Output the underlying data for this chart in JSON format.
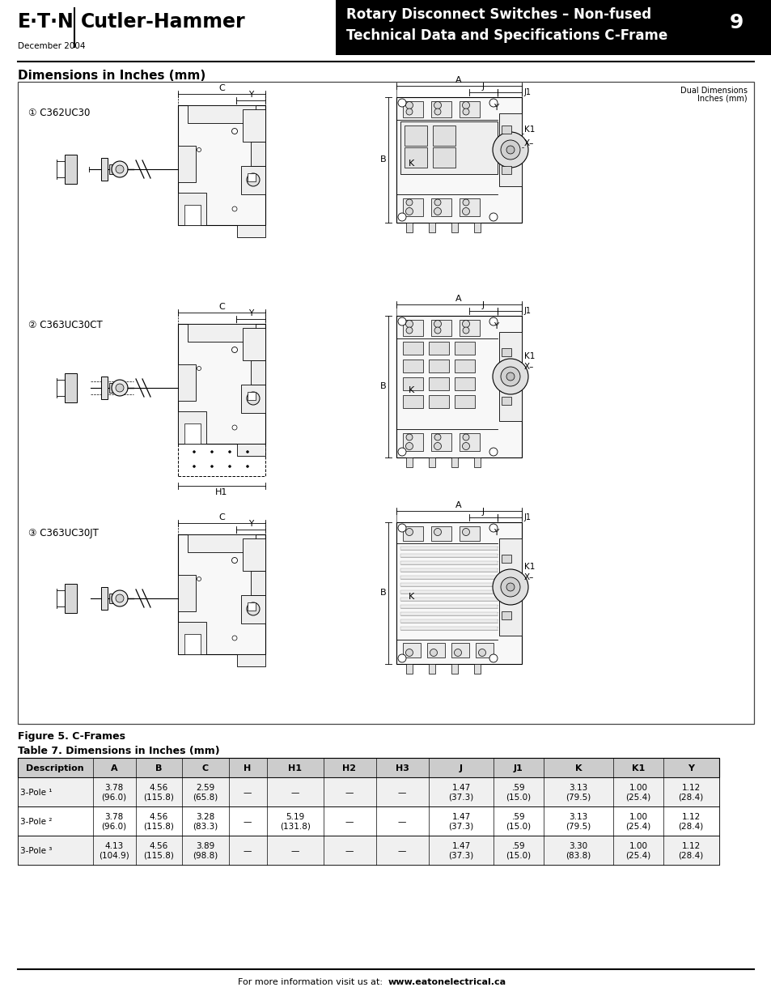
{
  "page_width": 9.54,
  "page_height": 12.35,
  "bg_color": "#ffffff",
  "header": {
    "logo_text": "E·T·N",
    "brand": "Cutler-Hammer",
    "title_line1": "Rotary Disconnect Switches – Non-fused",
    "title_line2": "Technical Data and Specifications C-Frame",
    "page_num": "9",
    "date": "December 2004",
    "header_bg": "#000000",
    "header_text_color": "#ffffff"
  },
  "section_title": "Dimensions in Inches (mm)",
  "figure_label": "Figure 5. C-Frames",
  "table_label": "Table 7. Dimensions in Inches (mm)",
  "table_headers": [
    "Description",
    "A",
    "B",
    "C",
    "H",
    "H1",
    "H2",
    "H3",
    "J",
    "J1",
    "K",
    "K1",
    "Y"
  ],
  "table_rows": [
    [
      "3-Pole ¹",
      "3.78\n(96.0)",
      "4.56\n(115.8)",
      "2.59\n(65.8)",
      "—",
      "—",
      "—",
      "—",
      "1.47\n(37.3)",
      ".59\n(15.0)",
      "3.13\n(79.5)",
      "1.00\n(25.4)",
      "1.12\n(28.4)"
    ],
    [
      "3-Pole ²",
      "3.78\n(96.0)",
      "4.56\n(115.8)",
      "3.28\n(83.3)",
      "—",
      "5.19\n(131.8)",
      "—",
      "—",
      "1.47\n(37.3)",
      ".59\n(15.0)",
      "3.13\n(79.5)",
      "1.00\n(25.4)",
      "1.12\n(28.4)"
    ],
    [
      "3-Pole ³",
      "4.13\n(104.9)",
      "4.56\n(115.8)",
      "3.89\n(98.8)",
      "—",
      "—",
      "—",
      "—",
      "1.47\n(37.3)",
      ".59\n(15.0)",
      "3.30\n(83.8)",
      "1.00\n(25.4)",
      "1.12\n(28.4)"
    ]
  ],
  "drawing_labels": [
    "① C362UC30",
    "② C363UC30CT",
    "③ C363UC30JT"
  ],
  "dual_dim_text": "Dual Dimensions\nInches (mm)",
  "footer_text": "For more information visit us at: ",
  "footer_url": "www.eatonelectrical.ca"
}
